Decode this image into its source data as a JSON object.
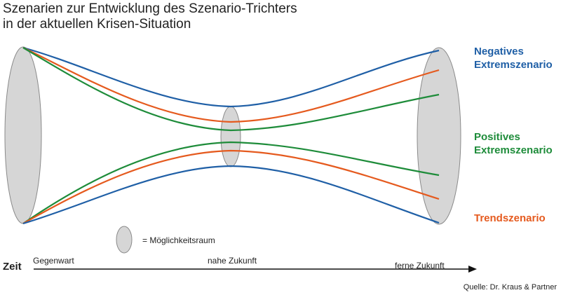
{
  "title_line1": "Szenarien zur Entwicklung des Szenario-Trichters",
  "title_line2": "in der aktuellen Krisen-Situation",
  "scenarios": {
    "negative": {
      "label_line1": "Negatives",
      "label_line2": "Extremszenario",
      "color": "#1f5fa6"
    },
    "positive": {
      "label_line1": "Positives",
      "label_line2": "Extremszenario",
      "color": "#1e8c3a"
    },
    "trend": {
      "label": "Trendszenario",
      "color": "#e55a1e"
    }
  },
  "legend": {
    "symbol_text": "= Möglichkeitsraum"
  },
  "timeline": {
    "axis_label": "Zeit",
    "present": "Gegenwart",
    "near_future": "nahe Zukunft",
    "far_future": "ferne Zukunft"
  },
  "source": "Quelle: Dr. Kraus & Partner",
  "colors": {
    "ellipse_fill": "#d6d6d6",
    "ellipse_stroke": "#8a8a8a",
    "axis": "#111111"
  }
}
